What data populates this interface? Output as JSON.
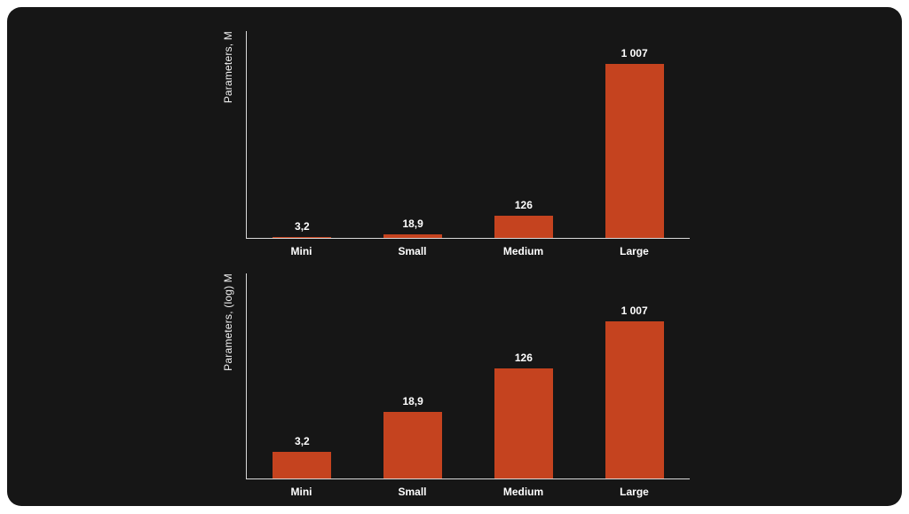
{
  "theme": {
    "slide_background": "#161616",
    "bar_color": "#c5431f",
    "axis_color": "#d9d9d9",
    "text_color": "#ffffff"
  },
  "chart_data": [
    {
      "type": "bar",
      "title": "",
      "ylabel": "Parameters, M",
      "xlabel": "",
      "scale": "linear",
      "grid": false,
      "legend": "none",
      "categories": [
        "Mini",
        "Small",
        "Medium",
        "Large"
      ],
      "values": [
        3.2,
        18.9,
        126,
        1007
      ],
      "value_labels": [
        "3,2",
        "18,9",
        "126",
        "1 007"
      ],
      "ylim": [
        0,
        1100
      ]
    },
    {
      "type": "bar",
      "title": "",
      "ylabel": "Parameters, (log) M",
      "xlabel": "",
      "scale": "log",
      "grid": false,
      "legend": "none",
      "categories": [
        "Mini",
        "Small",
        "Medium",
        "Large"
      ],
      "values": [
        3.2,
        18.9,
        126,
        1007
      ],
      "value_labels": [
        "3,2",
        "18,9",
        "126",
        "1 007"
      ],
      "ylim": [
        1,
        1100
      ]
    }
  ]
}
